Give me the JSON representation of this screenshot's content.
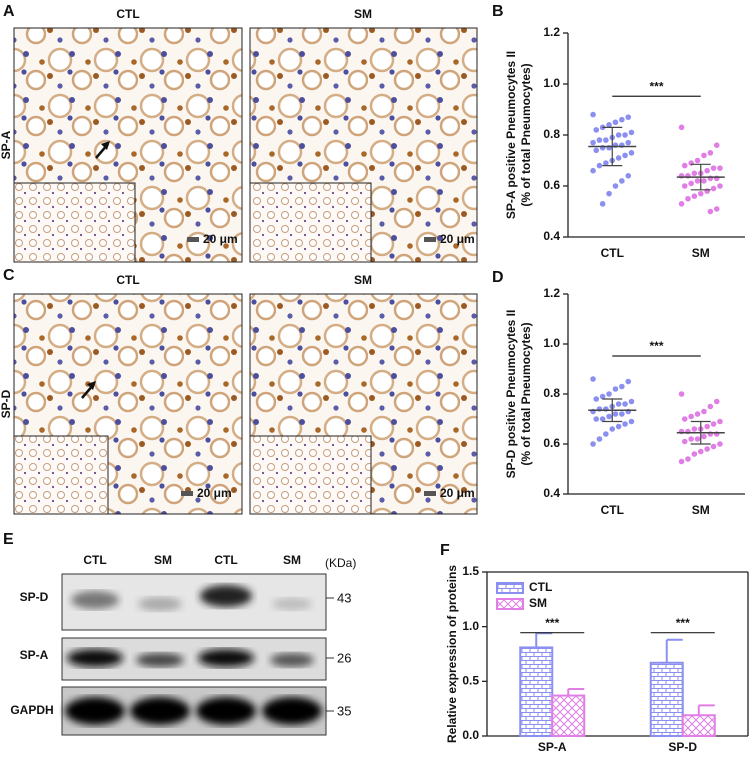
{
  "figure": {
    "panels": [
      "A",
      "B",
      "C",
      "D",
      "E",
      "F"
    ],
    "histology": {
      "columns": [
        "CTL",
        "SM"
      ],
      "rows": [
        "SP-A",
        "SP-D"
      ],
      "scale_bar": "20 μm"
    },
    "blot": {
      "lanes": [
        "CTL",
        "SM",
        "CTL",
        "SM"
      ],
      "unit": "(KDa)",
      "rows": [
        {
          "protein": "SP-D",
          "kda": 43
        },
        {
          "protein": "SP-A",
          "kda": 26
        },
        {
          "protein": "GAPDH",
          "kda": 35
        }
      ]
    }
  },
  "chart_data": [
    {
      "type": "dotplot",
      "ylabel": [
        "SP-A positive Pneumocytes II",
        "(% of total Pneumocytes)"
      ],
      "categories": [
        "CTL",
        "SM"
      ],
      "colors": [
        "#8a8ff0",
        "#e07ee6"
      ],
      "values": [
        [
          0.88,
          0.87,
          0.86,
          0.85,
          0.84,
          0.83,
          0.82,
          0.81,
          0.8,
          0.8,
          0.79,
          0.78,
          0.78,
          0.77,
          0.77,
          0.76,
          0.76,
          0.75,
          0.75,
          0.74,
          0.73,
          0.72,
          0.71,
          0.7,
          0.69,
          0.68,
          0.66,
          0.64,
          0.62,
          0.6,
          0.57,
          0.53
        ],
        [
          0.83,
          0.76,
          0.73,
          0.72,
          0.7,
          0.69,
          0.68,
          0.67,
          0.67,
          0.66,
          0.65,
          0.65,
          0.64,
          0.64,
          0.63,
          0.63,
          0.62,
          0.62,
          0.61,
          0.6,
          0.6,
          0.59,
          0.58,
          0.57,
          0.56,
          0.55,
          0.53,
          0.51,
          0.5
        ]
      ],
      "mean": [
        0.755,
        0.635
      ],
      "sd": [
        0.075,
        0.05
      ],
      "annotation": "***",
      "ylim": [
        0.4,
        1.2
      ],
      "yticks": [
        0.4,
        0.6,
        0.8,
        {
          "value": 1.0,
          "label": "1.0"
        },
        1.2
      ]
    },
    {
      "type": "dotplot",
      "ylabel": [
        "SP-D positive Pneumocytes II",
        "(% of total Pneumocytes)"
      ],
      "categories": [
        "CTL",
        "SM"
      ],
      "colors": [
        "#8a8ff0",
        "#e07ee6"
      ],
      "values": [
        [
          0.86,
          0.85,
          0.83,
          0.82,
          0.8,
          0.79,
          0.78,
          0.77,
          0.76,
          0.76,
          0.75,
          0.74,
          0.74,
          0.73,
          0.73,
          0.72,
          0.72,
          0.71,
          0.7,
          0.7,
          0.69,
          0.68,
          0.67,
          0.66,
          0.64,
          0.62,
          0.6
        ],
        [
          0.8,
          0.77,
          0.75,
          0.73,
          0.72,
          0.71,
          0.7,
          0.69,
          0.68,
          0.67,
          0.66,
          0.66,
          0.65,
          0.65,
          0.64,
          0.64,
          0.63,
          0.62,
          0.62,
          0.61,
          0.6,
          0.59,
          0.58,
          0.57,
          0.56,
          0.54,
          0.53
        ]
      ],
      "mean": [
        0.735,
        0.645
      ],
      "sd": [
        0.045,
        0.045
      ],
      "annotation": "***",
      "ylim": [
        0.4,
        1.2
      ],
      "yticks": [
        0.4,
        0.6,
        0.8,
        {
          "value": 1.0,
          "label": "1.0"
        },
        1.2
      ]
    },
    {
      "type": "bar",
      "ylabel": "Relative expression of proteins",
      "categories": [
        "SP-A",
        "SP-D"
      ],
      "series": [
        {
          "name": "CTL",
          "color": "#8a8ff0",
          "hatch": "brick",
          "values": [
            0.81,
            0.67
          ],
          "errors": [
            0.13,
            0.21
          ]
        },
        {
          "name": "SM",
          "color": "#e07ee6",
          "hatch": "cross",
          "values": [
            0.37,
            0.19
          ],
          "errors": [
            0.06,
            0.09
          ]
        }
      ],
      "annotations": [
        "***",
        "***"
      ],
      "legend": "top-left",
      "ylim": [
        0,
        1.5
      ],
      "yticks": [
        {
          "value": 0,
          "label": "0.0"
        },
        0.5,
        {
          "value": 1.0,
          "label": "1.0"
        },
        1.5
      ]
    }
  ]
}
